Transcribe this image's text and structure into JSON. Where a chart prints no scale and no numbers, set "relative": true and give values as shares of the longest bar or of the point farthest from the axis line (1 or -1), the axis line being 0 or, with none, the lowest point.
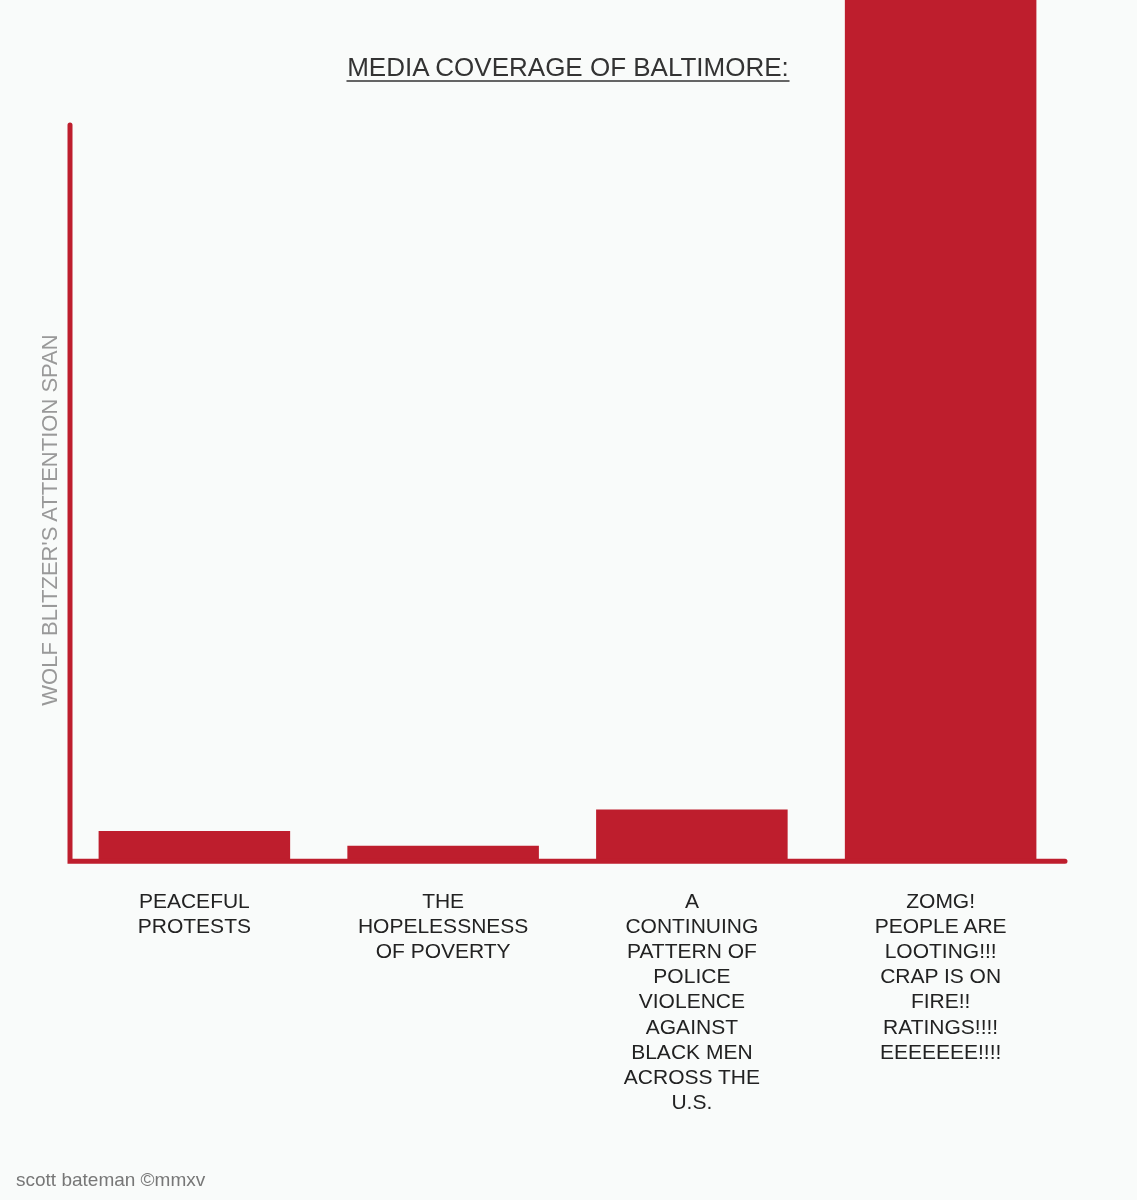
{
  "chart_data": {
    "type": "bar",
    "title": "MEDIA COVERAGE OF BALTIMORE:",
    "ylabel": "WOLF BLITZER'S ATTENTION SPAN",
    "categories": [
      "PEACEFUL PROTESTS",
      "THE HOPELESSNESS OF POVERTY",
      "A CONTINUING PATTERN OF POLICE VIOLENCE AGAINST BLACK MEN ACROSS THE U.S.",
      "ZOMG! PEOPLE ARE LOOTING!!! CRAP IS ON FIRE!! RATINGS!!!! EEEEEEE!!!!"
    ],
    "values": [
      0.035,
      0.018,
      0.06,
      1
    ],
    "color": "#be1e2d",
    "relative": true,
    "annotations": [
      "scott bateman ©mmxv"
    ]
  }
}
